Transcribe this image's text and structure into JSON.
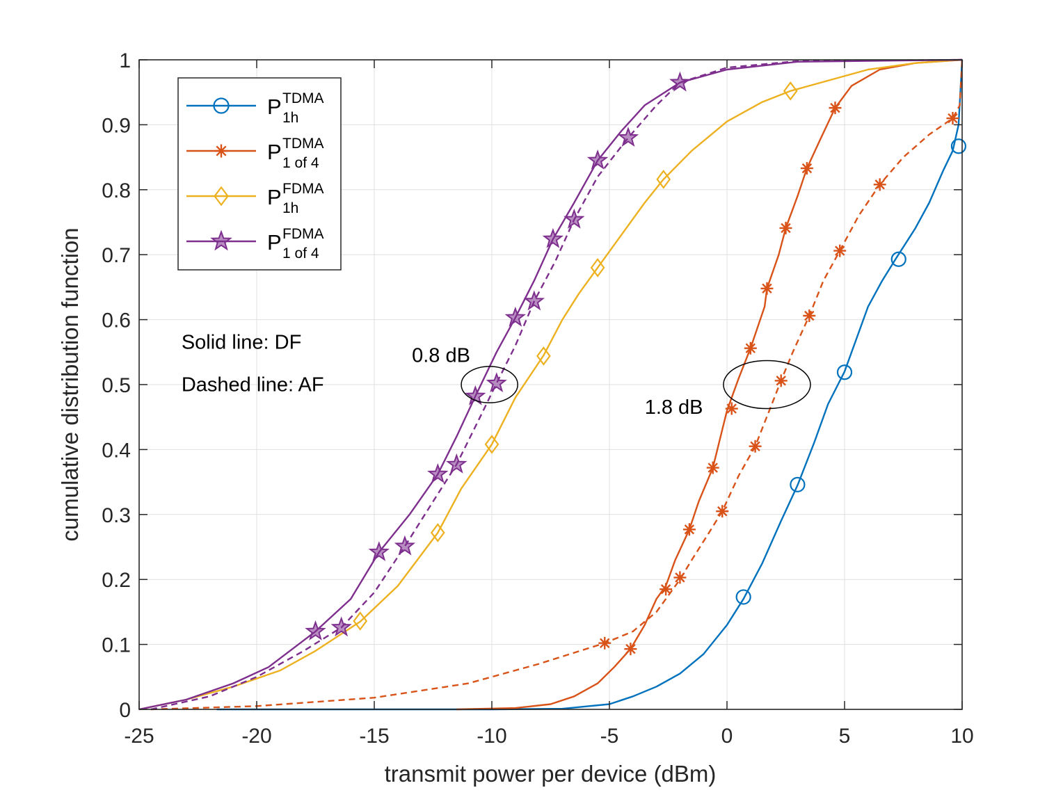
{
  "chart_data": {
    "type": "line",
    "xlabel": "transmit power per device (dBm)",
    "ylabel": "cumulative distribution function",
    "xlim": [
      -25,
      10
    ],
    "ylim": [
      0,
      1
    ],
    "xticks": [
      -25,
      -20,
      -15,
      -10,
      -5,
      0,
      5,
      10
    ],
    "xtick_labels": [
      "-25",
      "-20",
      "-15",
      "-10",
      "-5",
      "0",
      "5",
      "10"
    ],
    "yticks": [
      0,
      0.1,
      0.2,
      0.3,
      0.4,
      0.5,
      0.6,
      0.7,
      0.8,
      0.9,
      1
    ],
    "ytick_labels": [
      "0",
      "0.1",
      "0.2",
      "0.3",
      "0.4",
      "0.5",
      "0.6",
      "0.7",
      "0.8",
      "0.9",
      "1"
    ],
    "grid": true,
    "legend_position": "top-left",
    "legend": [
      {
        "base": "P",
        "sup": "TDMA",
        "sub": "1h",
        "color": "#0072BD",
        "marker": "circle"
      },
      {
        "base": "P",
        "sup": "TDMA",
        "sub": "1 of 4",
        "color": "#D95319",
        "marker": "asterisk"
      },
      {
        "base": "P",
        "sup": "FDMA",
        "sub": "1h",
        "color": "#EDB120",
        "marker": "diamond"
      },
      {
        "base": "P",
        "sup": "FDMA",
        "sub": "1 of 4",
        "color": "#7E2F8E",
        "marker": "star"
      }
    ],
    "series": [
      {
        "name": "TDMA 1h DF",
        "color": "#0072BD",
        "style": "solid",
        "marker": "circle",
        "points": [
          [
            -21.7,
            0
          ],
          [
            -10,
            0
          ],
          [
            -7,
            0.001
          ],
          [
            -5,
            0.008
          ],
          [
            -4,
            0.02
          ],
          [
            -3,
            0.035
          ],
          [
            -2,
            0.055
          ],
          [
            -1,
            0.085
          ],
          [
            0,
            0.13
          ],
          [
            0.7,
            0.17
          ],
          [
            1.5,
            0.225
          ],
          [
            2.3,
            0.29
          ],
          [
            3,
            0.345
          ],
          [
            3.7,
            0.41
          ],
          [
            4.3,
            0.47
          ],
          [
            5,
            0.52
          ],
          [
            5.5,
            0.57
          ],
          [
            6,
            0.62
          ],
          [
            6.6,
            0.66
          ],
          [
            7.2,
            0.695
          ],
          [
            8,
            0.74
          ],
          [
            8.6,
            0.78
          ],
          [
            9.2,
            0.83
          ],
          [
            9.6,
            0.86
          ],
          [
            9.85,
            0.9
          ],
          [
            10,
            1.0
          ]
        ],
        "markers": [
          [
            0.7,
            0.173
          ],
          [
            3,
            0.346
          ],
          [
            5,
            0.519
          ],
          [
            7.3,
            0.693
          ],
          [
            9.85,
            0.867
          ]
        ]
      },
      {
        "name": "TDMA 1 of 4 DF",
        "color": "#D95319",
        "style": "solid",
        "marker": "asterisk",
        "points": [
          [
            -11.5,
            0
          ],
          [
            -9,
            0.002
          ],
          [
            -7.5,
            0.008
          ],
          [
            -6.5,
            0.02
          ],
          [
            -5.5,
            0.04
          ],
          [
            -4.8,
            0.065
          ],
          [
            -4.1,
            0.093
          ],
          [
            -3.5,
            0.13
          ],
          [
            -3,
            0.17
          ],
          [
            -2.6,
            0.19
          ],
          [
            -2.2,
            0.23
          ],
          [
            -1.6,
            0.277
          ],
          [
            -1.2,
            0.32
          ],
          [
            -0.6,
            0.372
          ],
          [
            0,
            0.46
          ],
          [
            0.5,
            0.51
          ],
          [
            1,
            0.556
          ],
          [
            1.6,
            0.62
          ],
          [
            1.7,
            0.648
          ],
          [
            2.2,
            0.7
          ],
          [
            2.5,
            0.741
          ],
          [
            3,
            0.79
          ],
          [
            3.4,
            0.833
          ],
          [
            4,
            0.88
          ],
          [
            4.6,
            0.926
          ],
          [
            5.3,
            0.96
          ],
          [
            6.5,
            0.985
          ],
          [
            8,
            0.995
          ],
          [
            10,
            1.0
          ]
        ],
        "markers": [
          [
            -4.1,
            0.093
          ],
          [
            -2.6,
            0.185
          ],
          [
            -1.6,
            0.277
          ],
          [
            -0.6,
            0.372
          ],
          [
            0.2,
            0.463
          ],
          [
            1,
            0.556
          ],
          [
            1.7,
            0.648
          ],
          [
            2.5,
            0.741
          ],
          [
            3.4,
            0.833
          ],
          [
            4.6,
            0.926
          ]
        ]
      },
      {
        "name": "TDMA 1 of 4 AF",
        "color": "#D95319",
        "style": "dashed",
        "marker": "asterisk",
        "points": [
          [
            -24.5,
            0
          ],
          [
            -20,
            0.005
          ],
          [
            -15,
            0.018
          ],
          [
            -11,
            0.04
          ],
          [
            -8,
            0.07
          ],
          [
            -5.2,
            0.102
          ],
          [
            -4,
            0.12
          ],
          [
            -3,
            0.15
          ],
          [
            -2,
            0.2
          ],
          [
            -1.5,
            0.23
          ],
          [
            -0.8,
            0.27
          ],
          [
            -0.2,
            0.305
          ],
          [
            0.5,
            0.36
          ],
          [
            1.2,
            0.405
          ],
          [
            1.8,
            0.46
          ],
          [
            2.3,
            0.506
          ],
          [
            2.8,
            0.55
          ],
          [
            3.5,
            0.606
          ],
          [
            4.1,
            0.66
          ],
          [
            4.8,
            0.706
          ],
          [
            5.6,
            0.76
          ],
          [
            6.5,
            0.808
          ],
          [
            7.5,
            0.85
          ],
          [
            8.6,
            0.885
          ],
          [
            9.6,
            0.91
          ],
          [
            9.9,
            0.93
          ],
          [
            10,
            1.0
          ]
        ],
        "markers": [
          [
            -5.2,
            0.102
          ],
          [
            -2,
            0.203
          ],
          [
            -0.2,
            0.305
          ],
          [
            1.2,
            0.405
          ],
          [
            2.3,
            0.506
          ],
          [
            3.5,
            0.606
          ],
          [
            4.8,
            0.706
          ],
          [
            6.5,
            0.808
          ],
          [
            9.6,
            0.91
          ]
        ]
      },
      {
        "name": "FDMA 1h DF",
        "color": "#EDB120",
        "style": "solid",
        "marker": "diamond",
        "points": [
          [
            -25,
            0
          ],
          [
            -23,
            0.015
          ],
          [
            -21,
            0.035
          ],
          [
            -19,
            0.06
          ],
          [
            -17.5,
            0.09
          ],
          [
            -15.6,
            0.135
          ],
          [
            -14,
            0.19
          ],
          [
            -12.3,
            0.272
          ],
          [
            -11.3,
            0.34
          ],
          [
            -10,
            0.408
          ],
          [
            -9,
            0.48
          ],
          [
            -7.8,
            0.545
          ],
          [
            -7,
            0.6
          ],
          [
            -6.3,
            0.64
          ],
          [
            -5.5,
            0.68
          ],
          [
            -4.5,
            0.73
          ],
          [
            -3.5,
            0.78
          ],
          [
            -2.7,
            0.816
          ],
          [
            -1.5,
            0.86
          ],
          [
            0,
            0.905
          ],
          [
            1.5,
            0.935
          ],
          [
            2.7,
            0.952
          ],
          [
            4.5,
            0.97
          ],
          [
            6,
            0.985
          ],
          [
            8,
            0.995
          ],
          [
            10,
            1.0
          ]
        ],
        "markers": [
          [
            -15.6,
            0.136
          ],
          [
            -12.3,
            0.272
          ],
          [
            -10,
            0.408
          ],
          [
            -7.8,
            0.544
          ],
          [
            -5.5,
            0.68
          ],
          [
            -2.7,
            0.816
          ],
          [
            2.7,
            0.952
          ]
        ]
      },
      {
        "name": "FDMA 1 of 4 DF",
        "color": "#7E2F8E",
        "style": "solid",
        "marker": "star",
        "points": [
          [
            -25,
            0
          ],
          [
            -23,
            0.015
          ],
          [
            -21,
            0.04
          ],
          [
            -19.5,
            0.065
          ],
          [
            -17.5,
            0.12
          ],
          [
            -16,
            0.17
          ],
          [
            -14.8,
            0.242
          ],
          [
            -13.5,
            0.3
          ],
          [
            -12.3,
            0.362
          ],
          [
            -11.5,
            0.42
          ],
          [
            -10.7,
            0.482
          ],
          [
            -9.8,
            0.55
          ],
          [
            -9,
            0.603
          ],
          [
            -8.2,
            0.66
          ],
          [
            -7.4,
            0.724
          ],
          [
            -6.5,
            0.78
          ],
          [
            -5.5,
            0.845
          ],
          [
            -4.5,
            0.89
          ],
          [
            -3.5,
            0.93
          ],
          [
            -2,
            0.965
          ],
          [
            0,
            0.985
          ],
          [
            3,
            0.997
          ],
          [
            10,
            1.0
          ]
        ],
        "markers": [
          [
            -17.5,
            0.12
          ],
          [
            -14.8,
            0.242
          ],
          [
            -12.3,
            0.362
          ],
          [
            -10.7,
            0.482
          ],
          [
            -9,
            0.603
          ],
          [
            -7.4,
            0.724
          ],
          [
            -5.5,
            0.845
          ],
          [
            -2,
            0.965
          ]
        ]
      },
      {
        "name": "FDMA 1 of 4 AF",
        "color": "#7E2F8E",
        "style": "dashed",
        "marker": "star",
        "points": [
          [
            -24.5,
            0
          ],
          [
            -22,
            0.02
          ],
          [
            -20,
            0.05
          ],
          [
            -18,
            0.09
          ],
          [
            -16.4,
            0.126
          ],
          [
            -15,
            0.18
          ],
          [
            -13.7,
            0.251
          ],
          [
            -12.5,
            0.32
          ],
          [
            -11.5,
            0.377
          ],
          [
            -10.5,
            0.45
          ],
          [
            -9.8,
            0.502
          ],
          [
            -9,
            0.56
          ],
          [
            -8.2,
            0.628
          ],
          [
            -7.3,
            0.69
          ],
          [
            -6.5,
            0.754
          ],
          [
            -5.5,
            0.82
          ],
          [
            -4.2,
            0.88
          ],
          [
            -3,
            0.93
          ],
          [
            -2,
            0.965
          ],
          [
            0,
            0.988
          ],
          [
            3,
            0.998
          ],
          [
            10,
            1.0
          ]
        ],
        "markers": [
          [
            -16.4,
            0.126
          ],
          [
            -13.7,
            0.251
          ],
          [
            -11.5,
            0.377
          ],
          [
            -9.8,
            0.502
          ],
          [
            -8.2,
            0.628
          ],
          [
            -6.5,
            0.754
          ],
          [
            -4.2,
            0.88
          ]
        ]
      }
    ],
    "annotations": [
      {
        "text": "Solid line: DF",
        "x": -23.2,
        "y": 0.555
      },
      {
        "text": "Dashed line: AF",
        "x": -23.2,
        "y": 0.49
      },
      {
        "text": "0.8 dB",
        "x": -13.4,
        "y": 0.535
      },
      {
        "text": "1.8 dB",
        "x": -3.5,
        "y": 0.455
      }
    ],
    "ellipses": [
      {
        "cx": -10.1,
        "cy": 0.5,
        "rx": 1.2,
        "ry": 0.028
      },
      {
        "cx": 1.7,
        "cy": 0.5,
        "rx": 1.85,
        "ry": 0.037
      }
    ]
  }
}
